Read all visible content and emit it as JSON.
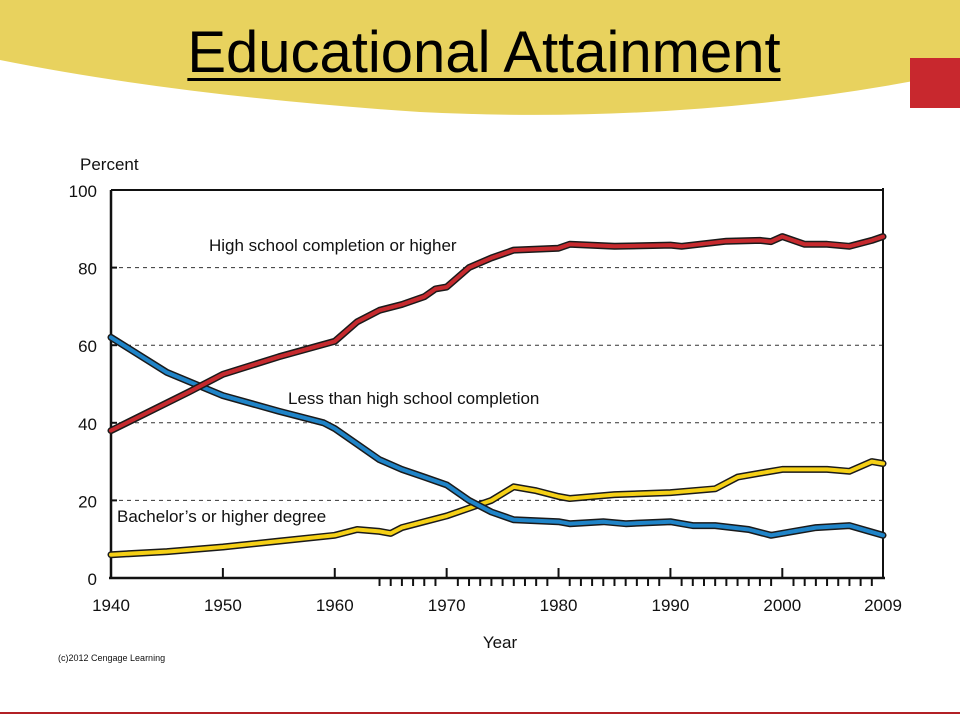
{
  "slide": {
    "title": "Educational Attainment",
    "credit": "(c)2012 Cengage Learning",
    "colors": {
      "banner": "#e8d25e",
      "accent": "#c8282e",
      "bottom_line": "#b22025"
    }
  },
  "chart_data": {
    "type": "line",
    "title": "Educational Attainment",
    "xlabel": "Year",
    "ylabel": "Percent",
    "xlim": [
      1940,
      2009
    ],
    "ylim": [
      0,
      100
    ],
    "xticks": [
      1940,
      1950,
      1960,
      1970,
      1980,
      1990,
      2000,
      2009
    ],
    "yticks": [
      0,
      20,
      40,
      60,
      80,
      100
    ],
    "grid": "dashed horizontal at 20, 40, 60, 80",
    "series": [
      {
        "name": "High school completion or higher",
        "color": "#c62a2e",
        "x": [
          1940,
          1947,
          1950,
          1955,
          1960,
          1962,
          1964,
          1966,
          1968,
          1969,
          1970,
          1972,
          1974,
          1976,
          1980,
          1981,
          1985,
          1990,
          1991,
          1995,
          1998,
          1999,
          2000,
          2002,
          2004,
          2006,
          2008,
          2009
        ],
        "values": [
          38,
          48,
          52.5,
          57,
          61,
          66,
          69,
          70.5,
          72.5,
          74.5,
          75,
          80,
          82.5,
          84.5,
          85,
          86,
          85.5,
          85.8,
          85.5,
          86.8,
          87,
          86.7,
          88,
          86,
          86,
          85.5,
          87,
          88
        ]
      },
      {
        "name": "Less than high school completion",
        "color": "#1f84c8",
        "x": [
          1940,
          1945,
          1950,
          1955,
          1959,
          1960,
          1962,
          1964,
          1966,
          1968,
          1970,
          1972,
          1974,
          1976,
          1980,
          1981,
          1984,
          1986,
          1990,
          1992,
          1994,
          1997,
          1999,
          2001,
          2003,
          2006,
          2009
        ],
        "values": [
          62,
          53,
          47,
          43,
          40,
          38.5,
          34.5,
          30.5,
          28,
          26,
          24,
          20,
          17,
          15,
          14.5,
          14,
          14.5,
          14,
          14.5,
          13.5,
          13.5,
          12.5,
          11,
          12,
          13,
          13.5,
          11
        ]
      },
      {
        "name": "Bachelor's or higher degree",
        "color": "#f5d016",
        "x": [
          1940,
          1945,
          1950,
          1955,
          1960,
          1962,
          1964,
          1965,
          1966,
          1968,
          1970,
          1972,
          1974,
          1976,
          1978,
          1980,
          1981,
          1985,
          1990,
          1994,
          1996,
          1998,
          2000,
          2002,
          2004,
          2006,
          2008,
          2009
        ],
        "values": [
          6,
          6.8,
          8,
          9.5,
          11,
          12.5,
          12,
          11.5,
          13,
          14.5,
          16,
          18,
          20,
          23.5,
          22.5,
          21,
          20.5,
          21.5,
          22,
          23,
          26,
          27,
          28,
          28,
          28,
          27.5,
          30,
          29.5
        ]
      }
    ],
    "series_labels": [
      "High school completion or higher",
      "Less than high school completion",
      "Bachelor’s or higher degree"
    ]
  }
}
